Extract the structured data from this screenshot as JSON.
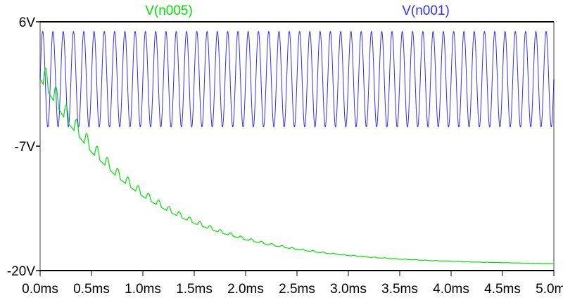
{
  "chart_data": {
    "type": "line",
    "title": "",
    "xlabel": "",
    "ylabel": "",
    "xlim": [
      0,
      5.0
    ],
    "ylim": [
      -20,
      6
    ],
    "x_unit": "ms",
    "x_ticks": [
      "0.0ms",
      "0.5ms",
      "1.0ms",
      "1.5ms",
      "2.0ms",
      "2.5ms",
      "3.0ms",
      "3.5ms",
      "4.0ms",
      "4.5ms",
      "5.0ms"
    ],
    "y_ticks": [
      "6V",
      "-7V",
      "-20V"
    ],
    "y_tick_values": [
      6,
      -7,
      -20
    ],
    "grid": false,
    "legend_placement": "top",
    "series": [
      {
        "name": "V(n005)",
        "color": "#00e000",
        "x": [
          0,
          0.25,
          0.5,
          0.75,
          1.0,
          1.25,
          1.5,
          1.75,
          2.0,
          2.25,
          2.5,
          2.75,
          3.0,
          3.25,
          3.5,
          3.75,
          4.0,
          4.25,
          4.5,
          4.75,
          5.0
        ],
        "y": [
          0,
          -4.29,
          -7.63,
          -10.24,
          -12.26,
          -13.84,
          -15.07,
          -16.03,
          -16.78,
          -17.36,
          -17.81,
          -18.16,
          -18.43,
          -18.65,
          -18.81,
          -18.94,
          -19.04,
          -19.12,
          -19.18,
          -19.23,
          -19.27
        ]
      },
      {
        "name": "V(n001)",
        "color": "#3030ff",
        "waveform": "sine",
        "amplitude": 5,
        "offset": 0,
        "frequency_khz": 10
      }
    ]
  }
}
